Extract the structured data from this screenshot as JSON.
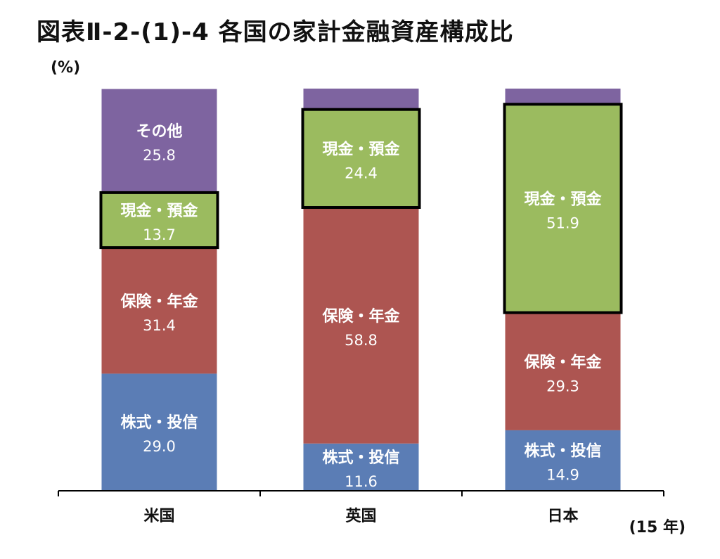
{
  "chart_data": {
    "type": "bar",
    "stacked": true,
    "percent_stacked": true,
    "title": "図表Ⅱ-2-(1)-4 各国の家計金融資産構成比",
    "ylabel": "(%)",
    "xlabel": "",
    "note": "(15 年)",
    "ylim": [
      0,
      100
    ],
    "grid": false,
    "legend": "none",
    "categories": [
      "米国",
      "英国",
      "日本"
    ],
    "series": [
      {
        "name": "株式・投信",
        "color": "#5B7DB5",
        "values": [
          29.0,
          11.6,
          14.9
        ]
      },
      {
        "name": "保険・年金",
        "color": "#AD5551",
        "values": [
          31.4,
          58.8,
          29.3
        ]
      },
      {
        "name": "現金・預金",
        "color": "#9BBB5F",
        "values": [
          13.7,
          24.4,
          51.9
        ],
        "highlighted": true
      },
      {
        "name": "その他",
        "color": "#7E64A0",
        "values": [
          25.8,
          null,
          null
        ]
      }
    ],
    "value_labels": [
      [
        "29.0",
        "11.6",
        "14.9"
      ],
      [
        "31.4",
        "58.8",
        "29.3"
      ],
      [
        "13.7",
        "24.4",
        "51.9"
      ],
      [
        "25.8",
        "",
        ""
      ]
    ],
    "series_labels_shown": [
      [
        true,
        true,
        true
      ],
      [
        true,
        true,
        true
      ],
      [
        true,
        true,
        true
      ],
      [
        true,
        false,
        false
      ]
    ]
  }
}
